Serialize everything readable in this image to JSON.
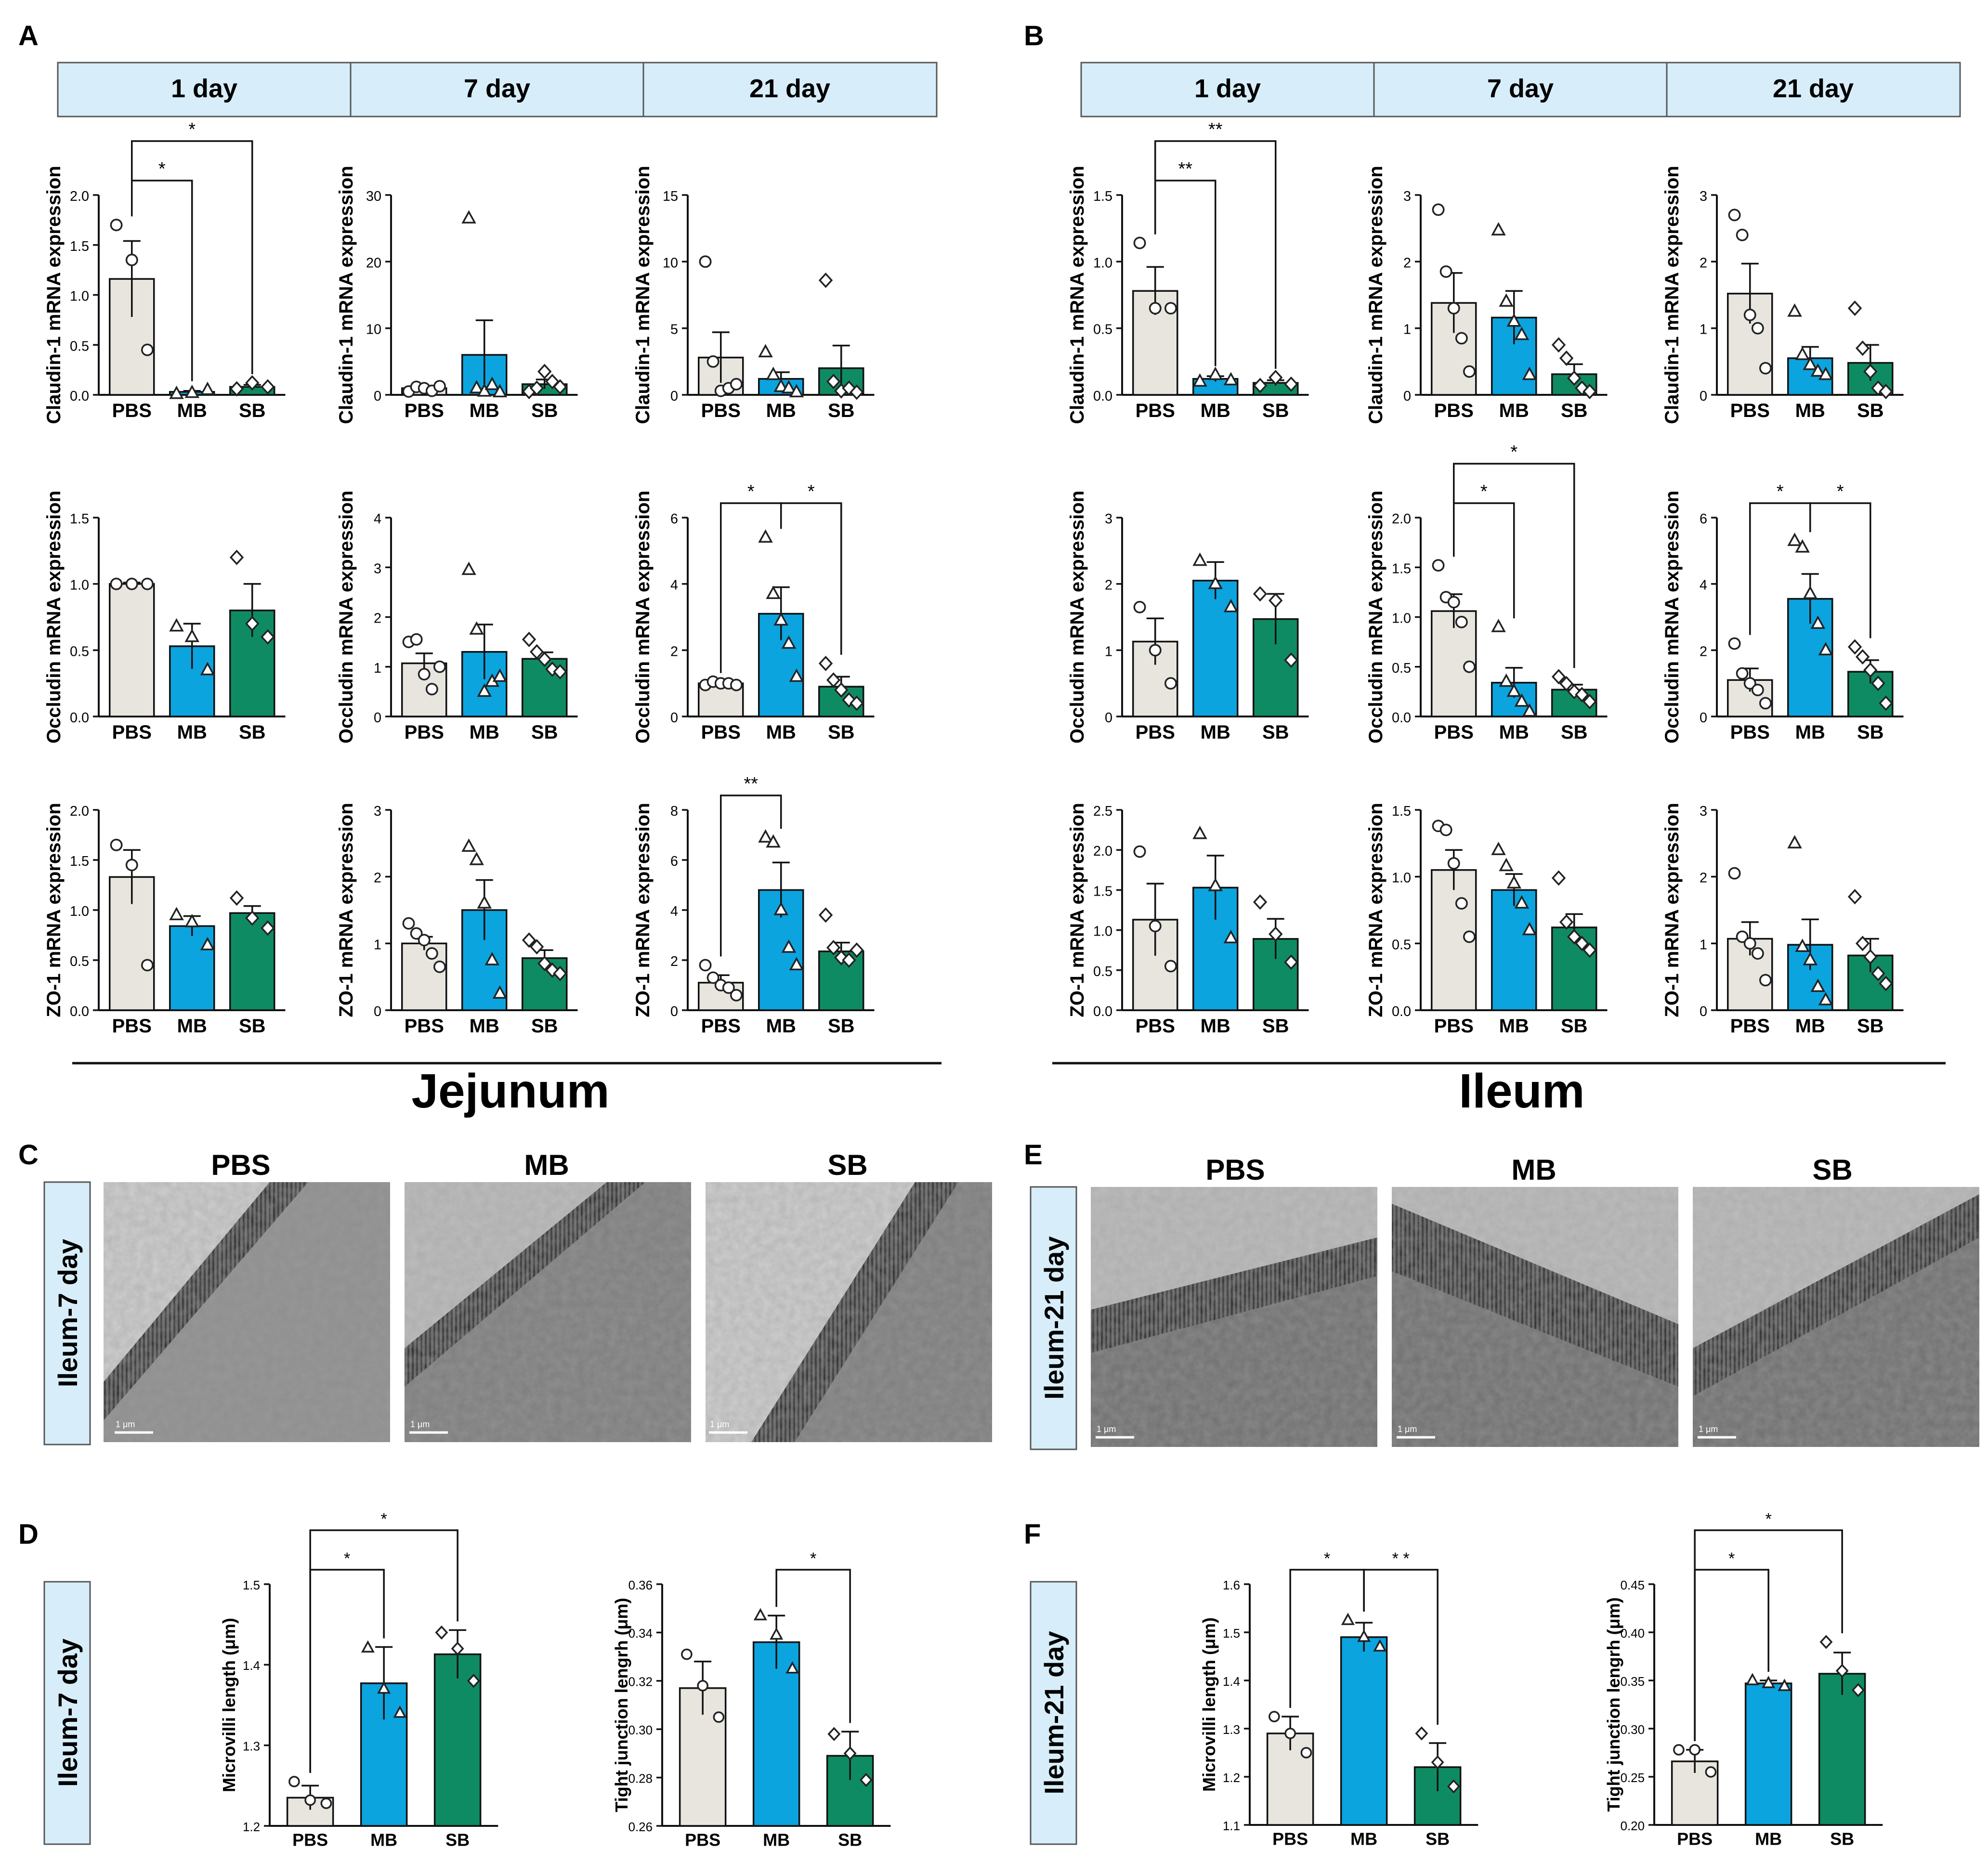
{
  "colors": {
    "PBS": "#e8e5df",
    "MB": "#0ba4df",
    "SB": "#0f8b63",
    "header_fill": "#d7eefa",
    "header_stroke": "#575757"
  },
  "panels": {
    "A": {
      "label": "A",
      "tissue": "Jejunum",
      "headers": [
        "1 day",
        "7 day",
        "21 day"
      ]
    },
    "B": {
      "label": "B",
      "tissue": "Ileum",
      "headers": [
        "1 day",
        "7 day",
        "21 day"
      ]
    },
    "C": {
      "label": "C",
      "side_label": "Ileum-7 day",
      "image_titles": [
        "PBS",
        "MB",
        "SB"
      ],
      "scale_bar": "1 μm"
    },
    "D": {
      "label": "D",
      "side_label": "Ileum-7 day"
    },
    "E": {
      "label": "E",
      "side_label": "Ileum-21 day",
      "image_titles": [
        "PBS",
        "MB",
        "SB"
      ],
      "scale_bar": "1 μm"
    },
    "F": {
      "label": "F",
      "side_label": "Ileum-21 day"
    }
  },
  "chart_data": [
    {
      "id": "A-claudin-1day",
      "type": "bar",
      "panel": "A",
      "ylabel": "Claudin-1 mRNA expression",
      "categories": [
        "PBS",
        "MB",
        "SB"
      ],
      "ylim": [
        0,
        2.0
      ],
      "yticks": [
        "0.0",
        "0.5",
        "1.0",
        "1.5",
        "2.0"
      ],
      "values": [
        1.16,
        0.03,
        0.08
      ],
      "errors": [
        0.38,
        0.01,
        0.02
      ],
      "points": [
        [
          1.7,
          1.35,
          0.45
        ],
        [
          0.01,
          0.02,
          0.05
        ],
        [
          0.06,
          0.12,
          0.08
        ]
      ],
      "sig": [
        {
          "a": 0,
          "b": 1,
          "label": "*",
          "level": 1
        },
        {
          "a": 0,
          "b": 2,
          "label": "*",
          "level": 2
        }
      ]
    },
    {
      "id": "A-claudin-7day",
      "type": "bar",
      "panel": "A",
      "ylabel": "Claudin-1 mRNA expression",
      "categories": [
        "PBS",
        "MB",
        "SB"
      ],
      "ylim": [
        0,
        30
      ],
      "yticks": [
        "0",
        "10",
        "20",
        "30"
      ],
      "values": [
        1.0,
        6.0,
        1.6
      ],
      "errors": [
        0.3,
        5.2,
        0.7
      ],
      "points": [
        [
          0.5,
          1.2,
          1.0,
          0.6,
          1.3
        ],
        [
          26.5,
          1.0,
          0.5,
          1.5,
          0.4
        ],
        [
          0.5,
          1.0,
          3.5,
          2.0,
          1.2
        ]
      ],
      "sig": []
    },
    {
      "id": "A-claudin-21day",
      "type": "bar",
      "panel": "A",
      "ylabel": "Claudin-1 mRNA expression",
      "categories": [
        "PBS",
        "MB",
        "SB"
      ],
      "ylim": [
        0,
        15
      ],
      "yticks": [
        "0",
        "5",
        "10",
        "15"
      ],
      "values": [
        2.8,
        1.2,
        2.0
      ],
      "errors": [
        1.9,
        0.5,
        1.7
      ],
      "points": [
        [
          10.0,
          2.5,
          0.3,
          0.5,
          0.8
        ],
        [
          3.2,
          1.5,
          0.6,
          0.5,
          0.2
        ],
        [
          8.6,
          1.0,
          0.3,
          0.5,
          0.2
        ]
      ],
      "sig": []
    },
    {
      "id": "A-occludin-1day",
      "type": "bar",
      "panel": "A",
      "ylabel": "Occludin mRNA expression",
      "categories": [
        "PBS",
        "MB",
        "SB"
      ],
      "ylim": [
        0,
        1.5
      ],
      "yticks": [
        "0.0",
        "0.5",
        "1.0",
        "1.5"
      ],
      "values": [
        1.0,
        0.53,
        0.8
      ],
      "errors": [
        0.01,
        0.17,
        0.2
      ],
      "points": [
        [
          1.0,
          1.0,
          1.0
        ],
        [
          0.68,
          0.6,
          0.35
        ],
        [
          1.2,
          0.7,
          0.6
        ]
      ],
      "sig": []
    },
    {
      "id": "A-occludin-7day",
      "type": "bar",
      "panel": "A",
      "ylabel": "Occludin mRNA expression",
      "categories": [
        "PBS",
        "MB",
        "SB"
      ],
      "ylim": [
        0,
        4
      ],
      "yticks": [
        "0",
        "1",
        "2",
        "3",
        "4"
      ],
      "values": [
        1.07,
        1.3,
        1.16
      ],
      "errors": [
        0.2,
        0.55,
        0.13
      ],
      "points": [
        [
          1.5,
          1.55,
          0.85,
          0.55,
          1.0
        ],
        [
          2.95,
          1.75,
          0.5,
          0.7,
          0.8
        ],
        [
          1.55,
          1.3,
          1.15,
          0.95,
          0.9
        ]
      ],
      "sig": []
    },
    {
      "id": "A-occludin-21day",
      "type": "bar",
      "panel": "A",
      "ylabel": "Occludin mRNA expression",
      "categories": [
        "PBS",
        "MB",
        "SB"
      ],
      "ylim": [
        0,
        6
      ],
      "yticks": [
        "0",
        "2",
        "4",
        "6"
      ],
      "values": [
        1.0,
        3.1,
        0.9
      ],
      "errors": [
        0.04,
        0.8,
        0.3
      ],
      "points": [
        [
          0.95,
          1.05,
          1.0,
          1.0,
          0.95
        ],
        [
          5.4,
          3.7,
          2.9,
          2.2,
          1.2
        ],
        [
          1.6,
          1.1,
          0.8,
          0.5,
          0.4
        ]
      ],
      "sig": [
        {
          "a": 0,
          "b": 1,
          "label": "*",
          "level": 1
        },
        {
          "a": 1,
          "b": 2,
          "label": "*",
          "level": 1
        }
      ]
    },
    {
      "id": "A-zo1-1day",
      "type": "bar",
      "panel": "A",
      "ylabel": "ZO-1 mRNA expression",
      "categories": [
        "PBS",
        "MB",
        "SB"
      ],
      "ylim": [
        0,
        2.0
      ],
      "yticks": [
        "0.0",
        "0.5",
        "1.0",
        "1.5",
        "2.0"
      ],
      "values": [
        1.33,
        0.84,
        0.97
      ],
      "errors": [
        0.27,
        0.1,
        0.07
      ],
      "points": [
        [
          1.65,
          1.45,
          0.45
        ],
        [
          0.95,
          0.88,
          0.65
        ],
        [
          1.12,
          0.92,
          0.82
        ]
      ],
      "sig": []
    },
    {
      "id": "A-zo1-7day",
      "type": "bar",
      "panel": "A",
      "ylabel": "ZO-1 mRNA expression",
      "categories": [
        "PBS",
        "MB",
        "SB"
      ],
      "ylim": [
        0,
        3
      ],
      "yticks": [
        "0",
        "1",
        "2",
        "3"
      ],
      "values": [
        1.0,
        1.5,
        0.78
      ],
      "errors": [
        0.1,
        0.45,
        0.12
      ],
      "points": [
        [
          1.3,
          1.15,
          1.05,
          0.85,
          0.65
        ],
        [
          2.45,
          2.25,
          1.6,
          0.75,
          0.25
        ],
        [
          1.05,
          0.95,
          0.7,
          0.6,
          0.55
        ]
      ],
      "sig": []
    },
    {
      "id": "A-zo1-21day",
      "type": "bar",
      "panel": "A",
      "ylabel": "ZO-1 mRNA expression",
      "categories": [
        "PBS",
        "MB",
        "SB"
      ],
      "ylim": [
        0,
        8
      ],
      "yticks": [
        "0",
        "2",
        "4",
        "6",
        "8"
      ],
      "values": [
        1.1,
        4.8,
        2.35
      ],
      "errors": [
        0.3,
        1.1,
        0.35
      ],
      "points": [
        [
          1.8,
          1.3,
          1.0,
          0.9,
          0.6
        ],
        [
          6.9,
          6.7,
          4.0,
          2.5,
          1.8
        ],
        [
          3.8,
          2.5,
          2.1,
          2.0,
          2.4
        ]
      ],
      "sig": [
        {
          "a": 0,
          "b": 1,
          "label": "**",
          "level": 1
        }
      ]
    },
    {
      "id": "B-claudin-1day",
      "type": "bar",
      "panel": "B",
      "ylabel": "Claudin-1 mRNA expression",
      "categories": [
        "PBS",
        "MB",
        "SB"
      ],
      "ylim": [
        0,
        1.5
      ],
      "yticks": [
        "0.0",
        "0.5",
        "1.0",
        "1.5"
      ],
      "values": [
        0.78,
        0.12,
        0.09
      ],
      "errors": [
        0.18,
        0.02,
        0.02
      ],
      "points": [
        [
          1.14,
          0.65,
          0.65
        ],
        [
          0.1,
          0.15,
          0.11
        ],
        [
          0.07,
          0.13,
          0.08
        ]
      ],
      "sig": [
        {
          "a": 0,
          "b": 1,
          "label": "**",
          "level": 1
        },
        {
          "a": 0,
          "b": 2,
          "label": "**",
          "level": 2
        }
      ]
    },
    {
      "id": "B-claudin-7day",
      "type": "bar",
      "panel": "B",
      "ylabel": "Claudin-1 mRNA expression",
      "categories": [
        "PBS",
        "MB",
        "SB"
      ],
      "ylim": [
        0,
        3
      ],
      "yticks": [
        "0",
        "1",
        "2",
        "3"
      ],
      "values": [
        1.38,
        1.16,
        0.31
      ],
      "errors": [
        0.45,
        0.4,
        0.15
      ],
      "points": [
        [
          2.78,
          1.85,
          1.3,
          0.85,
          0.35
        ],
        [
          2.47,
          1.4,
          1.1,
          0.9,
          0.3
        ],
        [
          0.75,
          0.55,
          0.25,
          0.1,
          0.05
        ]
      ],
      "sig": []
    },
    {
      "id": "B-claudin-21day",
      "type": "bar",
      "panel": "B",
      "ylabel": "Claudin-1 mRNA expression",
      "categories": [
        "PBS",
        "MB",
        "SB"
      ],
      "ylim": [
        0,
        3
      ],
      "yticks": [
        "0",
        "1",
        "2",
        "3"
      ],
      "values": [
        1.52,
        0.55,
        0.48
      ],
      "errors": [
        0.45,
        0.17,
        0.27
      ],
      "points": [
        [
          2.7,
          2.4,
          1.2,
          1.0,
          0.4
        ],
        [
          1.25,
          0.6,
          0.45,
          0.35,
          0.3
        ],
        [
          1.3,
          0.7,
          0.35,
          0.1,
          0.05
        ]
      ],
      "sig": []
    },
    {
      "id": "B-occludin-1day",
      "type": "bar",
      "panel": "B",
      "ylabel": "Occludin mRNA expression",
      "categories": [
        "PBS",
        "MB",
        "SB"
      ],
      "ylim": [
        0,
        3
      ],
      "yticks": [
        "0",
        "1",
        "2",
        "3"
      ],
      "values": [
        1.13,
        2.05,
        1.47
      ],
      "errors": [
        0.35,
        0.28,
        0.38
      ],
      "points": [
        [
          1.65,
          1.0,
          0.5
        ],
        [
          2.35,
          2.0,
          1.65
        ],
        [
          1.85,
          1.75,
          0.85
        ]
      ],
      "sig": []
    },
    {
      "id": "B-occludin-7day",
      "type": "bar",
      "panel": "B",
      "ylabel": "Occludin mRNA expression",
      "categories": [
        "PBS",
        "MB",
        "SB"
      ],
      "ylim": [
        0,
        2.0
      ],
      "yticks": [
        "0.0",
        "0.5",
        "1.0",
        "1.5",
        "2.0"
      ],
      "values": [
        1.06,
        0.34,
        0.27
      ],
      "errors": [
        0.17,
        0.15,
        0.05
      ],
      "points": [
        [
          1.52,
          1.2,
          1.15,
          0.95,
          0.5
        ],
        [
          0.9,
          0.35,
          0.25,
          0.15,
          0.05
        ],
        [
          0.4,
          0.33,
          0.25,
          0.22,
          0.15
        ]
      ],
      "sig": [
        {
          "a": 0,
          "b": 1,
          "label": "*",
          "level": 1
        },
        {
          "a": 0,
          "b": 2,
          "label": "*",
          "level": 2
        }
      ]
    },
    {
      "id": "B-occludin-21day",
      "type": "bar",
      "panel": "B",
      "ylabel": "Occludin mRNA expression",
      "categories": [
        "PBS",
        "MB",
        "SB"
      ],
      "ylim": [
        0,
        6
      ],
      "yticks": [
        "0",
        "2",
        "4",
        "6"
      ],
      "values": [
        1.1,
        3.55,
        1.35
      ],
      "errors": [
        0.35,
        0.75,
        0.35
      ],
      "points": [
        [
          2.2,
          1.3,
          1.0,
          0.8,
          0.4
        ],
        [
          5.3,
          5.1,
          3.7,
          2.8,
          2.0
        ],
        [
          2.1,
          1.8,
          1.4,
          1.0,
          0.4
        ]
      ],
      "sig": [
        {
          "a": 0,
          "b": 1,
          "label": "*",
          "level": 1
        },
        {
          "a": 1,
          "b": 2,
          "label": "*",
          "level": 1
        }
      ]
    },
    {
      "id": "B-zo1-1day",
      "type": "bar",
      "panel": "B",
      "ylabel": "ZO-1 mRNA expression",
      "categories": [
        "PBS",
        "MB",
        "SB"
      ],
      "ylim": [
        0,
        2.5
      ],
      "yticks": [
        "0.0",
        "0.5",
        "1.0",
        "1.5",
        "2.0",
        "2.5"
      ],
      "values": [
        1.13,
        1.53,
        0.89
      ],
      "errors": [
        0.45,
        0.4,
        0.25
      ],
      "points": [
        [
          1.98,
          1.05,
          0.55
        ],
        [
          2.2,
          1.55,
          0.9
        ],
        [
          1.35,
          0.95,
          0.6
        ]
      ],
      "sig": []
    },
    {
      "id": "B-zo1-7day",
      "type": "bar",
      "panel": "B",
      "ylabel": "ZO-1 mRNA expression",
      "categories": [
        "PBS",
        "MB",
        "SB"
      ],
      "ylim": [
        0,
        1.5
      ],
      "yticks": [
        "0.0",
        "0.5",
        "1.0",
        "1.5"
      ],
      "values": [
        1.05,
        0.9,
        0.62
      ],
      "errors": [
        0.15,
        0.12,
        0.1
      ],
      "points": [
        [
          1.38,
          1.35,
          1.1,
          0.8,
          0.55
        ],
        [
          1.2,
          1.08,
          0.95,
          0.8,
          0.6
        ],
        [
          0.99,
          0.66,
          0.55,
          0.5,
          0.45
        ]
      ],
      "sig": []
    },
    {
      "id": "B-zo1-21day",
      "type": "bar",
      "panel": "B",
      "ylabel": "ZO-1 mRNA expression",
      "categories": [
        "PBS",
        "MB",
        "SB"
      ],
      "ylim": [
        0,
        3
      ],
      "yticks": [
        "0",
        "1",
        "2",
        "3"
      ],
      "values": [
        1.07,
        0.98,
        0.82
      ],
      "errors": [
        0.25,
        0.38,
        0.25
      ],
      "points": [
        [
          2.05,
          1.1,
          1.0,
          0.85,
          0.45
        ],
        [
          2.5,
          0.95,
          0.75,
          0.35,
          0.15
        ],
        [
          1.7,
          1.0,
          0.8,
          0.55,
          0.4
        ]
      ],
      "sig": []
    },
    {
      "id": "D-microvilli",
      "type": "bar",
      "panel": "D",
      "ylabel": "Microvilli length (μm)",
      "categories": [
        "PBS",
        "MB",
        "SB"
      ],
      "ylim": [
        1.2,
        1.5
      ],
      "yticks": [
        "1.2",
        "1.3",
        "1.4",
        "1.5"
      ],
      "values": [
        1.235,
        1.377,
        1.413
      ],
      "errors": [
        0.015,
        0.045,
        0.03
      ],
      "points": [
        [
          1.255,
          1.232,
          1.228
        ],
        [
          1.421,
          1.37,
          1.34
        ],
        [
          1.44,
          1.42,
          1.38
        ]
      ],
      "sig": [
        {
          "a": 0,
          "b": 1,
          "label": "*",
          "level": 1
        },
        {
          "a": 0,
          "b": 2,
          "label": "*",
          "level": 2
        }
      ]
    },
    {
      "id": "D-tight",
      "type": "bar",
      "panel": "D",
      "ylabel": "Tight junction lengrh (μm)",
      "categories": [
        "PBS",
        "MB",
        "SB"
      ],
      "ylim": [
        0.26,
        0.36
      ],
      "yticks": [
        "0.26",
        "0.28",
        "0.30",
        "0.32",
        "0.34",
        "0.36"
      ],
      "values": [
        0.317,
        0.336,
        0.289
      ],
      "errors": [
        0.011,
        0.011,
        0.01
      ],
      "points": [
        [
          0.331,
          0.318,
          0.305
        ],
        [
          0.347,
          0.339,
          0.325
        ],
        [
          0.298,
          0.29,
          0.279
        ]
      ],
      "sig": [
        {
          "a": 1,
          "b": 2,
          "label": "*",
          "level": 1
        }
      ]
    },
    {
      "id": "F-microvilli",
      "type": "bar",
      "panel": "F",
      "ylabel": "Microvilli length (μm)",
      "categories": [
        "PBS",
        "MB",
        "SB"
      ],
      "ylim": [
        1.1,
        1.6
      ],
      "yticks": [
        "1.1",
        "1.2",
        "1.3",
        "1.4",
        "1.5",
        "1.6"
      ],
      "values": [
        1.29,
        1.49,
        1.22
      ],
      "errors": [
        0.035,
        0.03,
        0.05
      ],
      "points": [
        [
          1.325,
          1.29,
          1.25
        ],
        [
          1.525,
          1.49,
          1.47
        ],
        [
          1.29,
          1.23,
          1.18
        ]
      ],
      "sig": [
        {
          "a": 0,
          "b": 1,
          "label": "*",
          "level": 1
        },
        {
          "a": 1,
          "b": 2,
          "label": "* *",
          "level": 1
        }
      ]
    },
    {
      "id": "F-tight",
      "type": "bar",
      "panel": "F",
      "ylabel": "Tight junction lengrh (μm)",
      "categories": [
        "PBS",
        "MB",
        "SB"
      ],
      "ylim": [
        0.2,
        0.45
      ],
      "yticks": [
        "0.20",
        "0.25",
        "0.30",
        "0.35",
        "0.40",
        "0.45"
      ],
      "values": [
        0.266,
        0.347,
        0.357
      ],
      "errors": [
        0.012,
        0.003,
        0.022
      ],
      "points": [
        [
          0.278,
          0.278,
          0.255
        ],
        [
          0.35,
          0.347,
          0.344
        ],
        [
          0.39,
          0.36,
          0.34
        ]
      ],
      "sig": [
        {
          "a": 0,
          "b": 1,
          "label": "*",
          "level": 1
        },
        {
          "a": 0,
          "b": 2,
          "label": "*",
          "level": 2
        }
      ]
    }
  ]
}
